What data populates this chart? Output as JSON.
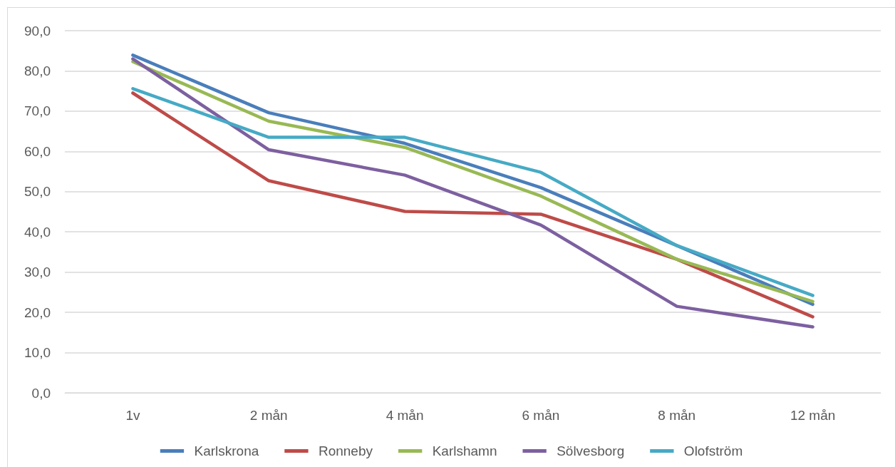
{
  "chart_data": {
    "type": "line",
    "categories": [
      "1v",
      "2 mån",
      "4 mån",
      "6 mån",
      "8 mån",
      "12 mån"
    ],
    "series": [
      {
        "name": "Karlskrona",
        "color": "#4a7ebb",
        "values": [
          83.9,
          69.6,
          62.0,
          51.0,
          36.6,
          22.0
        ]
      },
      {
        "name": "Ronneby",
        "color": "#be4b48",
        "values": [
          74.5,
          52.7,
          45.1,
          44.4,
          33.2,
          18.9
        ]
      },
      {
        "name": "Karlshamn",
        "color": "#98b954",
        "values": [
          82.3,
          67.5,
          61.0,
          48.9,
          33.2,
          22.7
        ]
      },
      {
        "name": "Sölvesborg",
        "color": "#7d60a0",
        "values": [
          83.0,
          60.4,
          54.1,
          41.7,
          21.5,
          16.4
        ]
      },
      {
        "name": "Olofström",
        "color": "#46aac5",
        "values": [
          75.6,
          63.5,
          63.5,
          54.8,
          36.6,
          24.2
        ]
      }
    ],
    "ylim": [
      0,
      90
    ],
    "yticks": [
      {
        "value": 0,
        "label": "0,0"
      },
      {
        "value": 10,
        "label": "10,0"
      },
      {
        "value": 20,
        "label": "20,0"
      },
      {
        "value": 30,
        "label": "30,0"
      },
      {
        "value": 40,
        "label": "40,0"
      },
      {
        "value": 50,
        "label": "50,0"
      },
      {
        "value": 60,
        "label": "60,0"
      },
      {
        "value": 70,
        "label": "70,0"
      },
      {
        "value": 80,
        "label": "80,0"
      },
      {
        "value": 90,
        "label": "90,0"
      }
    ],
    "grid": "y",
    "legend": "bottom",
    "marker": "none",
    "line_style": "solid"
  }
}
